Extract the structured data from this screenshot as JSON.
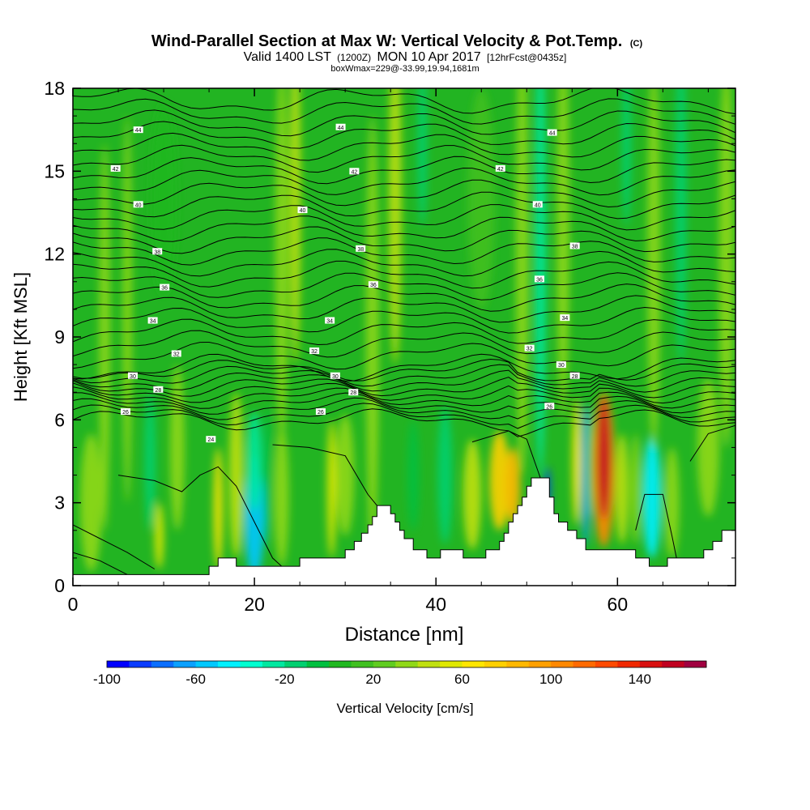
{
  "chart_data": {
    "type": "heatmap",
    "title": "Wind-Parallel Section at Max W: Vertical Velocity & Pot.Temp.",
    "title_mark": "(C)",
    "subtitle_main_a": "Valid 1400 LST",
    "subtitle_small_a": "(1200Z)",
    "subtitle_main_b": "MON 10 Apr 2017",
    "subtitle_small_b": "[12hrFcst@0435z]",
    "info_line": "boxWmax=229@-33.99,19.94,1681m",
    "xlabel": "Distance [nm]",
    "ylabel": "Height [Kft MSL]",
    "xlim": [
      0,
      73
    ],
    "ylim": [
      0,
      18
    ],
    "x_ticks": [
      "0",
      "20",
      "40",
      "60"
    ],
    "x_tick_values": [
      0,
      20,
      40,
      60
    ],
    "y_ticks": [
      "0",
      "3",
      "6",
      "9",
      "12",
      "15",
      "18"
    ],
    "y_tick_values": [
      0,
      3,
      6,
      9,
      12,
      15,
      18
    ],
    "colorbar": {
      "label": "Vertical Velocity [cm/s]",
      "min": -100,
      "max": 170,
      "step": 10,
      "tick_labels": [
        "-100",
        "-60",
        "-20",
        "20",
        "60",
        "100",
        "140"
      ],
      "tick_values": [
        -100,
        -60,
        -20,
        20,
        60,
        100,
        140
      ],
      "colors": [
        "#0000ff",
        "#0a3cff",
        "#0a6eff",
        "#0aa0ff",
        "#00c8ff",
        "#00f0ff",
        "#00ffd0",
        "#00e8a0",
        "#00d070",
        "#00c040",
        "#20b820",
        "#40c020",
        "#60cc20",
        "#90d818",
        "#c0e010",
        "#e0e800",
        "#ffe600",
        "#ffd000",
        "#ffb800",
        "#ffa000",
        "#ff8800",
        "#ff6a00",
        "#ff4a00",
        "#f02800",
        "#d81010",
        "#c00020",
        "#a00040"
      ]
    },
    "terrain_kft": [
      [
        0,
        0.4
      ],
      [
        15,
        0.4
      ],
      [
        15,
        0.7
      ],
      [
        16,
        0.7
      ],
      [
        16,
        1.0
      ],
      [
        18,
        1.0
      ],
      [
        18,
        0.7
      ],
      [
        25,
        0.7
      ],
      [
        25,
        1.0
      ],
      [
        30,
        1.0
      ],
      [
        30,
        1.3
      ],
      [
        31,
        1.3
      ],
      [
        31,
        1.6
      ],
      [
        31.8,
        1.6
      ],
      [
        31.8,
        1.9
      ],
      [
        32.5,
        1.9
      ],
      [
        32.5,
        2.2
      ],
      [
        33,
        2.2
      ],
      [
        33,
        2.5
      ],
      [
        33.5,
        2.5
      ],
      [
        33.5,
        2.9
      ],
      [
        35,
        2.9
      ],
      [
        35,
        2.6
      ],
      [
        35.5,
        2.6
      ],
      [
        35.5,
        2.3
      ],
      [
        36,
        2.3
      ],
      [
        36,
        2.0
      ],
      [
        36.5,
        2.0
      ],
      [
        36.5,
        1.7
      ],
      [
        37.5,
        1.7
      ],
      [
        37.5,
        1.3
      ],
      [
        39,
        1.3
      ],
      [
        39,
        1.0
      ],
      [
        40.5,
        1.0
      ],
      [
        40.5,
        1.3
      ],
      [
        43,
        1.3
      ],
      [
        43,
        1.0
      ],
      [
        45.5,
        1.0
      ],
      [
        45.5,
        1.3
      ],
      [
        47,
        1.3
      ],
      [
        47,
        1.6
      ],
      [
        47.5,
        1.6
      ],
      [
        47.5,
        1.9
      ],
      [
        48,
        1.9
      ],
      [
        48,
        2.3
      ],
      [
        48.5,
        2.3
      ],
      [
        48.5,
        2.6
      ],
      [
        49,
        2.6
      ],
      [
        49,
        2.9
      ],
      [
        49.5,
        2.9
      ],
      [
        49.5,
        3.2
      ],
      [
        50,
        3.2
      ],
      [
        50,
        3.6
      ],
      [
        50.5,
        3.6
      ],
      [
        50.5,
        3.9
      ],
      [
        52.5,
        3.9
      ],
      [
        52.5,
        3.2
      ],
      [
        53,
        3.2
      ],
      [
        53,
        2.6
      ],
      [
        53.5,
        2.6
      ],
      [
        53.5,
        2.3
      ],
      [
        54.5,
        2.3
      ],
      [
        54.5,
        2.0
      ],
      [
        55.5,
        2.0
      ],
      [
        55.5,
        1.7
      ],
      [
        56.5,
        1.7
      ],
      [
        56.5,
        1.3
      ],
      [
        62,
        1.3
      ],
      [
        62,
        1.0
      ],
      [
        63.5,
        1.0
      ],
      [
        63.5,
        0.7
      ],
      [
        65.5,
        0.7
      ],
      [
        65.5,
        1.0
      ],
      [
        69.5,
        1.0
      ],
      [
        69.5,
        1.3
      ],
      [
        70.5,
        1.3
      ],
      [
        70.5,
        1.6
      ],
      [
        71.5,
        1.6
      ],
      [
        71.5,
        2.0
      ],
      [
        73,
        2.0
      ]
    ],
    "updraft_max_cm_s": 229,
    "updraft_x_nm": 58.5,
    "contour_label_values": [
      "24",
      "26",
      "28",
      "30",
      "32",
      "34",
      "36",
      "38",
      "40",
      "42",
      "44"
    ],
    "contour_labels": [
      {
        "text": "44",
        "x": 7.2,
        "y": 16.5
      },
      {
        "text": "42",
        "x": 4.7,
        "y": 15.1
      },
      {
        "text": "40",
        "x": 7.2,
        "y": 13.8
      },
      {
        "text": "38",
        "x": 9.3,
        "y": 12.1
      },
      {
        "text": "36",
        "x": 10.1,
        "y": 10.8
      },
      {
        "text": "34",
        "x": 8.8,
        "y": 9.6
      },
      {
        "text": "32",
        "x": 11.4,
        "y": 8.4
      },
      {
        "text": "30",
        "x": 6.6,
        "y": 7.6
      },
      {
        "text": "28",
        "x": 9.4,
        "y": 7.1
      },
      {
        "text": "26",
        "x": 5.8,
        "y": 6.3
      },
      {
        "text": "24",
        "x": 15.2,
        "y": 5.3
      },
      {
        "text": "44",
        "x": 29.5,
        "y": 16.6
      },
      {
        "text": "42",
        "x": 31.0,
        "y": 15.0
      },
      {
        "text": "40",
        "x": 25.3,
        "y": 13.6
      },
      {
        "text": "38",
        "x": 31.7,
        "y": 12.2
      },
      {
        "text": "36",
        "x": 33.1,
        "y": 10.9
      },
      {
        "text": "34",
        "x": 28.3,
        "y": 9.6
      },
      {
        "text": "32",
        "x": 26.6,
        "y": 8.5
      },
      {
        "text": "30",
        "x": 28.9,
        "y": 7.6
      },
      {
        "text": "28",
        "x": 30.9,
        "y": 7.0
      },
      {
        "text": "26",
        "x": 27.3,
        "y": 6.3
      },
      {
        "text": "42",
        "x": 47.1,
        "y": 15.1
      },
      {
        "text": "44",
        "x": 52.8,
        "y": 16.4
      },
      {
        "text": "40",
        "x": 51.2,
        "y": 13.8
      },
      {
        "text": "38",
        "x": 55.3,
        "y": 12.3
      },
      {
        "text": "36",
        "x": 51.4,
        "y": 11.1
      },
      {
        "text": "34",
        "x": 54.2,
        "y": 9.7
      },
      {
        "text": "32",
        "x": 50.3,
        "y": 8.6
      },
      {
        "text": "30",
        "x": 53.8,
        "y": 8.0
      },
      {
        "text": "28",
        "x": 55.3,
        "y": 7.6
      },
      {
        "text": "26",
        "x": 52.5,
        "y": 6.5
      }
    ]
  }
}
